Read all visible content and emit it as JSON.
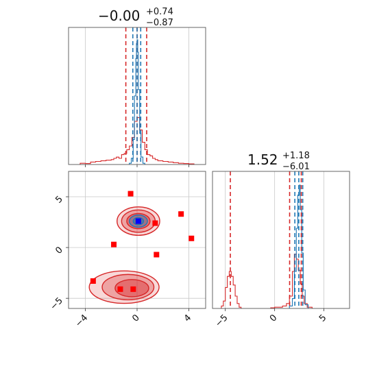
{
  "chart_data": {
    "type": "corner",
    "parameters": [
      {
        "title": {
          "value": "−0.00",
          "plus": "+0.74",
          "minus": "−0.87"
        },
        "range": [
          -5.3,
          5.3
        ],
        "ticks": [
          -4,
          0,
          4
        ],
        "tick_labels": [
          "−4",
          "0",
          "4"
        ],
        "quantiles_red": [
          -0.87,
          0,
          0.74
        ],
        "quantiles_blue": [
          -0.33,
          0,
          0.28
        ],
        "hist_red": [
          {
            "x0": -4.4,
            "x1": -4.0,
            "h": 0.01
          },
          {
            "x0": -4.0,
            "x1": -3.6,
            "h": 0.008
          },
          {
            "x0": -3.6,
            "x1": -3.2,
            "h": 0.02
          },
          {
            "x0": -3.2,
            "x1": -2.8,
            "h": 0.025
          },
          {
            "x0": -2.8,
            "x1": -2.4,
            "h": 0.03
          },
          {
            "x0": -2.4,
            "x1": -2.0,
            "h": 0.035
          },
          {
            "x0": -2.0,
            "x1": -1.8,
            "h": 0.04
          },
          {
            "x0": -1.8,
            "x1": -1.6,
            "h": 0.05
          },
          {
            "x0": -1.6,
            "x1": -1.4,
            "h": 0.06
          },
          {
            "x0": -1.4,
            "x1": -1.2,
            "h": 0.05
          },
          {
            "x0": -1.2,
            "x1": -1.0,
            "h": 0.08
          },
          {
            "x0": -1.0,
            "x1": -0.8,
            "h": 0.09
          },
          {
            "x0": -0.8,
            "x1": -0.6,
            "h": 0.12
          },
          {
            "x0": -0.6,
            "x1": -0.4,
            "h": 0.15
          },
          {
            "x0": -0.4,
            "x1": -0.2,
            "h": 0.22
          },
          {
            "x0": -0.2,
            "x1": 0.0,
            "h": 0.35
          },
          {
            "x0": 0.0,
            "x1": 0.2,
            "h": 0.38
          },
          {
            "x0": 0.2,
            "x1": 0.4,
            "h": 0.28
          },
          {
            "x0": 0.4,
            "x1": 0.6,
            "h": 0.18
          },
          {
            "x0": 0.6,
            "x1": 0.8,
            "h": 0.12
          },
          {
            "x0": 0.8,
            "x1": 1.0,
            "h": 0.08
          },
          {
            "x0": 1.0,
            "x1": 1.2,
            "h": 0.07
          },
          {
            "x0": 1.2,
            "x1": 1.4,
            "h": 0.05
          },
          {
            "x0": 1.4,
            "x1": 1.6,
            "h": 0.04
          },
          {
            "x0": 1.6,
            "x1": 2.0,
            "h": 0.03
          },
          {
            "x0": 2.0,
            "x1": 2.4,
            "h": 0.025
          },
          {
            "x0": 2.4,
            "x1": 2.8,
            "h": 0.02
          },
          {
            "x0": 2.8,
            "x1": 3.2,
            "h": 0.015
          },
          {
            "x0": 3.2,
            "x1": 3.6,
            "h": 0.01
          },
          {
            "x0": 3.6,
            "x1": 4.0,
            "h": 0.008
          },
          {
            "x0": 4.0,
            "x1": 4.4,
            "h": 0.005
          }
        ],
        "hist_blue": [
          {
            "x0": -0.6,
            "x1": -0.45,
            "h": 0.01
          },
          {
            "x0": -0.45,
            "x1": -0.3,
            "h": 0.05
          },
          {
            "x0": -0.3,
            "x1": -0.2,
            "h": 0.2
          },
          {
            "x0": -0.2,
            "x1": -0.1,
            "h": 0.55
          },
          {
            "x0": -0.1,
            "x1": -0.05,
            "h": 0.85
          },
          {
            "x0": -0.05,
            "x1": 0.0,
            "h": 0.97
          },
          {
            "x0": 0.0,
            "x1": 0.05,
            "h": 1.0
          },
          {
            "x0": 0.05,
            "x1": 0.1,
            "h": 0.9
          },
          {
            "x0": 0.1,
            "x1": 0.2,
            "h": 0.6
          },
          {
            "x0": 0.2,
            "x1": 0.3,
            "h": 0.25
          },
          {
            "x0": 0.3,
            "x1": 0.45,
            "h": 0.06
          },
          {
            "x0": 0.45,
            "x1": 0.6,
            "h": 0.01
          }
        ]
      },
      {
        "title": {
          "value": "1.52",
          "plus": "+1.18",
          "minus": "−6.01"
        },
        "range": [
          -6.3,
          7.6
        ],
        "ticks": [
          -5,
          0,
          5
        ],
        "tick_labels": [
          "−5",
          "0",
          "5"
        ],
        "quantiles_red": [
          -4.49,
          1.52,
          2.7
        ],
        "quantiles_blue": [
          2.05,
          2.45,
          2.85
        ],
        "hist_red": [
          {
            "x0": -5.4,
            "x1": -5.2,
            "h": 0.02
          },
          {
            "x0": -5.2,
            "x1": -5.0,
            "h": 0.06
          },
          {
            "x0": -5.0,
            "x1": -4.8,
            "h": 0.17
          },
          {
            "x0": -4.8,
            "x1": -4.6,
            "h": 0.26
          },
          {
            "x0": -4.6,
            "x1": -4.4,
            "h": 0.3
          },
          {
            "x0": -4.4,
            "x1": -4.2,
            "h": 0.26
          },
          {
            "x0": -4.2,
            "x1": -4.0,
            "h": 0.19
          },
          {
            "x0": -4.0,
            "x1": -3.8,
            "h": 0.1
          },
          {
            "x0": -3.8,
            "x1": -3.6,
            "h": 0.04
          },
          {
            "x0": -3.6,
            "x1": -3.4,
            "h": 0.01
          },
          {
            "x0": -0.4,
            "x1": 0.0,
            "h": 0.005
          },
          {
            "x0": 0.0,
            "x1": 0.4,
            "h": 0.01
          },
          {
            "x0": 0.4,
            "x1": 0.8,
            "h": 0.01
          },
          {
            "x0": 0.8,
            "x1": 1.2,
            "h": 0.02
          },
          {
            "x0": 1.2,
            "x1": 1.5,
            "h": 0.04
          },
          {
            "x0": 1.5,
            "x1": 1.8,
            "h": 0.1
          },
          {
            "x0": 1.8,
            "x1": 2.0,
            "h": 0.3
          },
          {
            "x0": 2.0,
            "x1": 2.2,
            "h": 0.44
          },
          {
            "x0": 2.2,
            "x1": 2.4,
            "h": 0.4
          },
          {
            "x0": 2.4,
            "x1": 2.6,
            "h": 0.31
          },
          {
            "x0": 2.6,
            "x1": 2.8,
            "h": 0.2
          },
          {
            "x0": 2.8,
            "x1": 3.0,
            "h": 0.1
          },
          {
            "x0": 3.0,
            "x1": 3.3,
            "h": 0.04
          },
          {
            "x0": 3.3,
            "x1": 3.8,
            "h": 0.01
          }
        ],
        "hist_blue": [
          {
            "x0": 1.5,
            "x1": 1.8,
            "h": 0.02
          },
          {
            "x0": 1.8,
            "x1": 2.0,
            "h": 0.08
          },
          {
            "x0": 2.0,
            "x1": 2.2,
            "h": 0.3
          },
          {
            "x0": 2.2,
            "x1": 2.35,
            "h": 0.65
          },
          {
            "x0": 2.35,
            "x1": 2.5,
            "h": 0.92
          },
          {
            "x0": 2.5,
            "x1": 2.6,
            "h": 1.0
          },
          {
            "x0": 2.6,
            "x1": 2.75,
            "h": 0.8
          },
          {
            "x0": 2.75,
            "x1": 2.9,
            "h": 0.45
          },
          {
            "x0": 2.9,
            "x1": 3.1,
            "h": 0.15
          },
          {
            "x0": 3.1,
            "x1": 3.4,
            "h": 0.03
          }
        ]
      }
    ],
    "joint": {
      "x_range": [
        -5.3,
        5.3
      ],
      "y_range": [
        -6.0,
        7.5
      ],
      "red_contours": [
        {
          "cx": 0.1,
          "cy": 2.6,
          "rx": 1.65,
          "ry": 1.4,
          "opacity": 0.18
        },
        {
          "cx": 0.1,
          "cy": 2.6,
          "rx": 1.3,
          "ry": 1.1,
          "opacity": 0.3
        },
        {
          "cx": 0.1,
          "cy": 2.6,
          "rx": 0.9,
          "ry": 0.75,
          "opacity": 0.42
        },
        {
          "cx": -1.0,
          "cy": -3.9,
          "rx": 2.7,
          "ry": 1.6,
          "opacity": 0.18
        },
        {
          "cx": -0.7,
          "cy": -3.9,
          "rx": 2.0,
          "ry": 1.25,
          "opacity": 0.3
        },
        {
          "cx": -0.4,
          "cy": -4.0,
          "rx": 1.3,
          "ry": 0.85,
          "opacity": 0.42
        }
      ],
      "blue_contours": [
        {
          "cx": 0.1,
          "cy": 2.6,
          "rx": 0.7,
          "ry": 0.6,
          "opacity": 0.35
        },
        {
          "cx": 0.1,
          "cy": 2.6,
          "rx": 0.4,
          "ry": 0.35,
          "opacity": 0.55
        }
      ],
      "points": [
        {
          "x": -0.5,
          "y": 5.3
        },
        {
          "x": -1.8,
          "y": 0.3
        },
        {
          "x": 1.4,
          "y": 2.4
        },
        {
          "x": 3.4,
          "y": 3.3
        },
        {
          "x": 4.2,
          "y": 0.9
        },
        {
          "x": 1.5,
          "y": -0.7
        },
        {
          "x": -3.4,
          "y": -3.3
        },
        {
          "x": -1.3,
          "y": -4.1
        },
        {
          "x": -0.3,
          "y": -4.1
        },
        {
          "x": 0.1,
          "y": 2.6
        }
      ],
      "marker_blue": {
        "x": 0.1,
        "y": 2.6
      }
    },
    "colors": {
      "red": "#d62728",
      "blue": "#1f77b4",
      "marker_red": "#ff0000",
      "marker_blue": "#0000ff"
    }
  }
}
